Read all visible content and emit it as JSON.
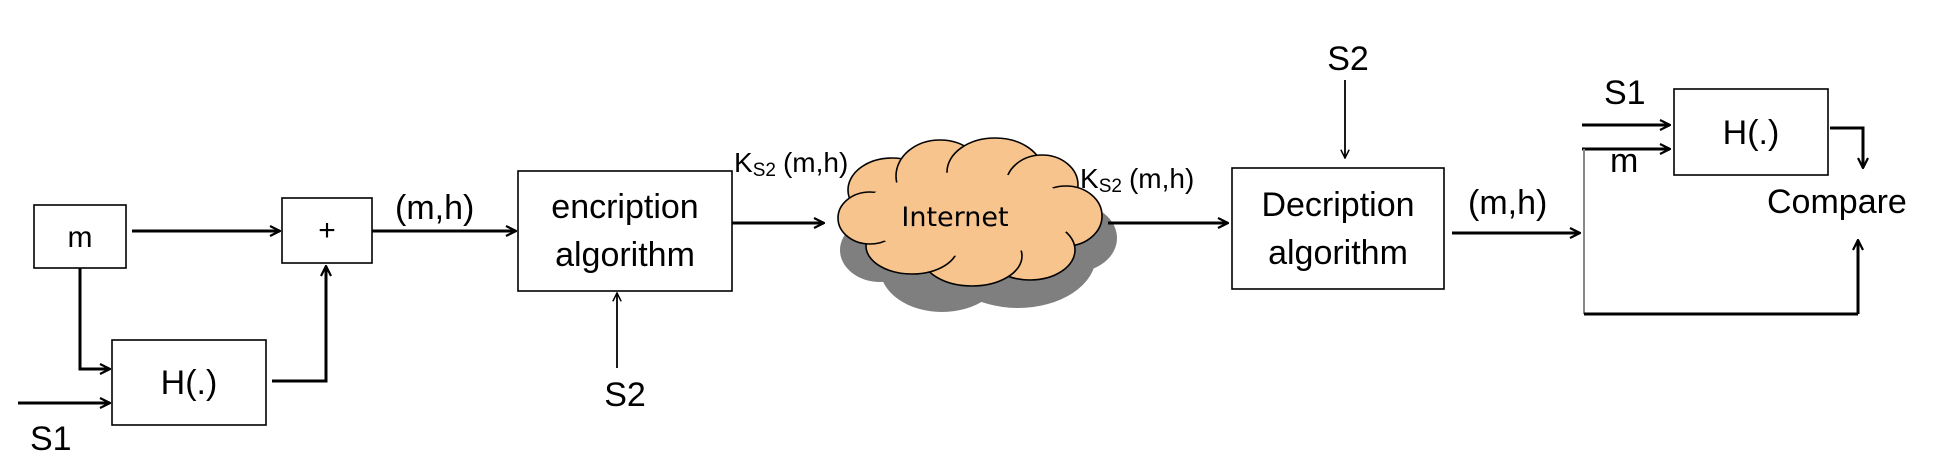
{
  "colors": {
    "cloud_fill": "#f8c48e",
    "cloud_shadow": "#7f7f7f",
    "line": "#000000"
  },
  "blocks": {
    "m": "m",
    "plus": "+",
    "hash1": "H(.)",
    "enc_line1": "encription",
    "enc_line2": "algorithm",
    "internet": "Internet",
    "dec_line1": "Decription",
    "dec_line2": "algorithm",
    "hash2": "H(.)",
    "compare": "Compare"
  },
  "labels": {
    "s1_in": "S1",
    "pair1": "(m,h)",
    "s2_enc": "S2",
    "cipher1_k": "K",
    "cipher1_sub": "S2",
    "cipher1_rest": "(m,h)",
    "cipher2_k": "K",
    "cipher2_sub": "S2",
    "cipher2_rest": "(m,h)",
    "s2_dec": "S2",
    "pair2": "(m,h)",
    "s1_verify": "S1",
    "m_verify": "m"
  }
}
